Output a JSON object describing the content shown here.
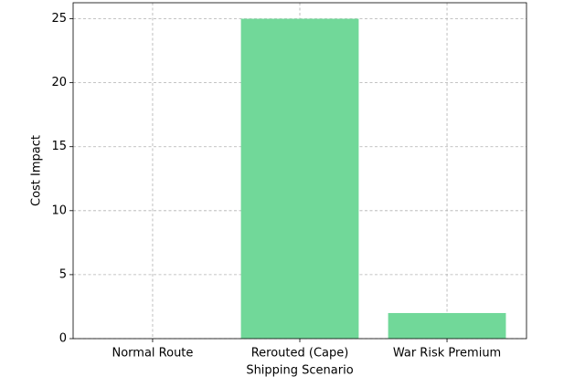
{
  "chart_data": {
    "type": "bar",
    "xlabel": "Shipping Scenario",
    "ylabel": "Cost Impact",
    "categories": [
      "Normal Route",
      "Rerouted (Cape)",
      "War Risk Premium"
    ],
    "values": [
      0,
      25,
      2
    ],
    "color": "#71d899",
    "ylim": [
      0,
      26.25
    ],
    "yticks": [
      0,
      5,
      10,
      15,
      20,
      25
    ],
    "grid": true
  }
}
